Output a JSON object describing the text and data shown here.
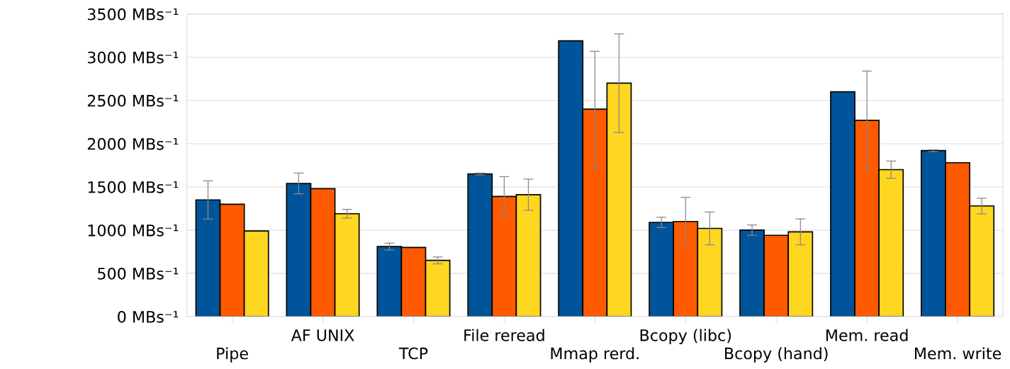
{
  "chart_data": {
    "type": "bar",
    "categories": [
      "Pipe",
      "AF UNIX",
      "TCP",
      "File reread",
      "Mmap rerd.",
      "Bcopy (libc)",
      "Bcopy (hand)",
      "Mem. read",
      "Mem. write"
    ],
    "series": [
      {
        "color": "#00559a",
        "values": [
          1350,
          1540,
          810,
          1650,
          3190,
          1090,
          1000,
          2600,
          1920
        ],
        "errors": [
          220,
          120,
          40,
          10,
          null,
          60,
          60,
          null,
          10
        ]
      },
      {
        "color": "#ff5a00",
        "values": [
          1300,
          1480,
          800,
          1390,
          2400,
          1100,
          940,
          2270,
          1780
        ],
        "errors": [
          null,
          null,
          null,
          230,
          670,
          280,
          null,
          570,
          null
        ]
      },
      {
        "color": "#ffd620",
        "values": [
          990,
          1190,
          650,
          1410,
          2700,
          1020,
          980,
          1700,
          1280
        ],
        "errors": [
          null,
          50,
          40,
          180,
          570,
          190,
          150,
          100,
          90
        ]
      }
    ],
    "ylim": [
      0,
      3500
    ],
    "yticks": [
      {
        "value": 0,
        "label": "0 MBs⁻¹"
      },
      {
        "value": 500,
        "label": "500 MBs⁻¹"
      },
      {
        "value": 1000,
        "label": "1000 MBs⁻¹"
      },
      {
        "value": 1500,
        "label": "1500 MBs⁻¹"
      },
      {
        "value": 2000,
        "label": "2000 MBs⁻¹"
      },
      {
        "value": 2500,
        "label": "2500 MBs⁻¹"
      },
      {
        "value": 3000,
        "label": "3000 MBs⁻¹"
      },
      {
        "value": 3500,
        "label": "3500 MBs⁻¹"
      }
    ],
    "grid": "y"
  }
}
